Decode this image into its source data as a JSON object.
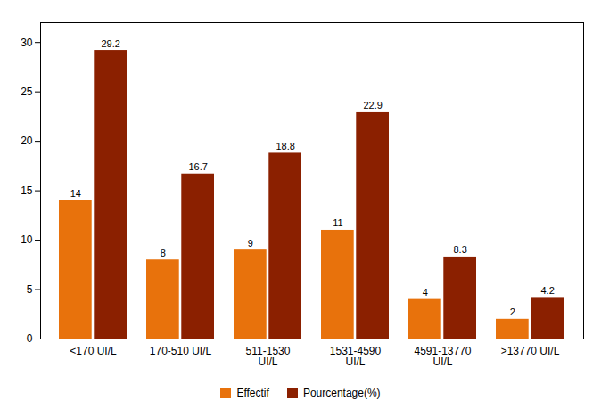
{
  "chart_data": {
    "type": "bar",
    "categories": [
      "<170 UI/L",
      "170-510 UI/L",
      "511-1530\nUI/L",
      "1531-4590\nUI/L",
      "4591-13770\nUI/L",
      ">13770 UI/L"
    ],
    "series": [
      {
        "name": "Effectif",
        "color": "#E8720C",
        "values": [
          14,
          8,
          9,
          11,
          4,
          2
        ]
      },
      {
        "name": "Pourcentage(%)",
        "color": "#8B2000",
        "values": [
          29.2,
          16.7,
          18.8,
          22.9,
          8.3,
          4.2
        ]
      }
    ],
    "ylim": [
      0,
      32
    ],
    "yticks": [
      0,
      5,
      10,
      15,
      20,
      25,
      30
    ],
    "grid": false,
    "data_labels": true,
    "legend": "bottom"
  }
}
